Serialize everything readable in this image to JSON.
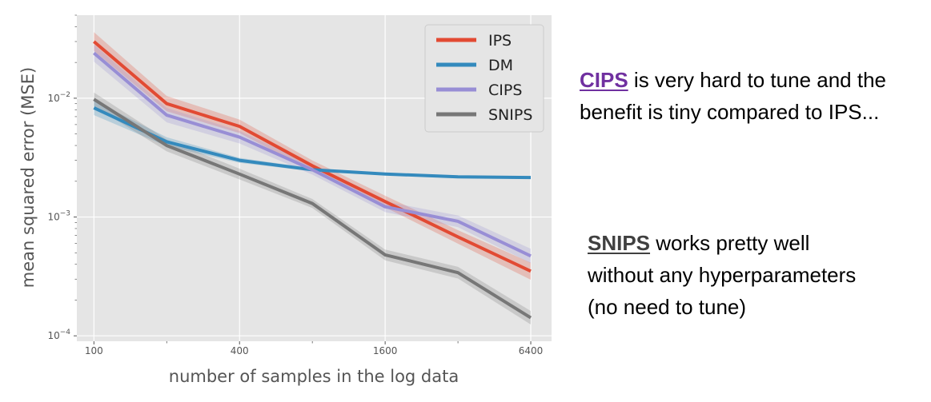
{
  "chart_data": {
    "type": "line",
    "xlabel": "number of samples in the log data",
    "ylabel": "mean squared error (MSE)",
    "x_scale": "log",
    "y_scale": "log",
    "xlim": [
      85,
      7800
    ],
    "ylim": [
      9e-05,
      0.05
    ],
    "x_ticks": [
      {
        "value": 100,
        "label": "100"
      },
      {
        "value": 400,
        "label": "400"
      },
      {
        "value": 1600,
        "label": "1600"
      },
      {
        "value": 6400,
        "label": "6400"
      }
    ],
    "y_ticks": [
      {
        "value": 0.01,
        "base": "10",
        "exp": "−2"
      },
      {
        "value": 0.001,
        "base": "10",
        "exp": "−3"
      },
      {
        "value": 0.0001,
        "base": "10",
        "exp": "−4"
      }
    ],
    "grid": true,
    "legend_position": "top-right",
    "x": [
      100,
      200,
      400,
      800,
      1600,
      3200,
      6400
    ],
    "series": [
      {
        "name": "IPS",
        "color": "#e24a33",
        "values": [
          0.03,
          0.009,
          0.0058,
          0.0027,
          0.00135,
          0.00068,
          0.00035
        ],
        "band": [
          0.2,
          0.16,
          0.14,
          0.11,
          0.12,
          0.14,
          0.18
        ]
      },
      {
        "name": "DM",
        "color": "#348abd",
        "values": [
          0.0083,
          0.0043,
          0.003,
          0.0025,
          0.0023,
          0.00218,
          0.00215
        ],
        "band": [
          0.15,
          0.09,
          0.05,
          0.03,
          0.02,
          0.02,
          0.02
        ]
      },
      {
        "name": "CIPS",
        "color": "#988ed5",
        "values": [
          0.024,
          0.0072,
          0.0047,
          0.0025,
          0.00122,
          0.00092,
          0.00047
        ],
        "band": [
          0.18,
          0.15,
          0.13,
          0.1,
          0.11,
          0.12,
          0.15
        ]
      },
      {
        "name": "SNIPS",
        "color": "#777777",
        "values": [
          0.0098,
          0.004,
          0.0023,
          0.0013,
          0.00048,
          0.00034,
          0.000142
        ],
        "band": [
          0.14,
          0.12,
          0.11,
          0.09,
          0.11,
          0.12,
          0.14
        ]
      }
    ]
  },
  "notes": {
    "cips": {
      "highlight": "CIPS",
      "text": " is very hard to tune and the benefit is tiny compared to IPS..."
    },
    "snips": {
      "highlight": "SNIPS",
      "line1": " works pretty well",
      "line2": "without any hyperparameters",
      "line3": "(no need to tune)"
    }
  }
}
